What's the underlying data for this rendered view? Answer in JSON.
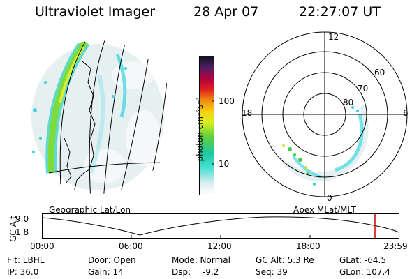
{
  "header": {
    "instrument": "Ultraviolet Imager",
    "date": "28 Apr 07",
    "time": "22:27:07 UT"
  },
  "colorbar": {
    "label": "photon cm⁻²s⁻¹",
    "ticks": [
      "100",
      "10"
    ]
  },
  "polar_plot": {
    "mlt_labels": [
      "12",
      "18",
      "6",
      "0"
    ],
    "lat_labels": [
      "60",
      "70",
      "80"
    ]
  },
  "projections": {
    "left": "Geographic Lat/Lon",
    "right": "Apex MLat/MLT"
  },
  "altitude_plot": {
    "ylabel": "GC Alt",
    "yticks": [
      "9.0",
      "1.8"
    ],
    "xticks": [
      "00:00",
      "06:00",
      "12:00",
      "18:00",
      "23:59"
    ],
    "marker_color": "#cc0000"
  },
  "status": {
    "flt": "Flt:  LBHL",
    "ip": "IP:  36.0",
    "door": "Door:  Open",
    "gain": "Gain:  14",
    "mode": "Mode:  Normal",
    "dsp_label": "Dsp:",
    "dsp_value": "-9.2",
    "gcalt": "GC Alt:  5.3 Re",
    "seq": "Seq:  39",
    "glat": "GLat:  -64.5",
    "glon": "GLon:  107.4"
  }
}
